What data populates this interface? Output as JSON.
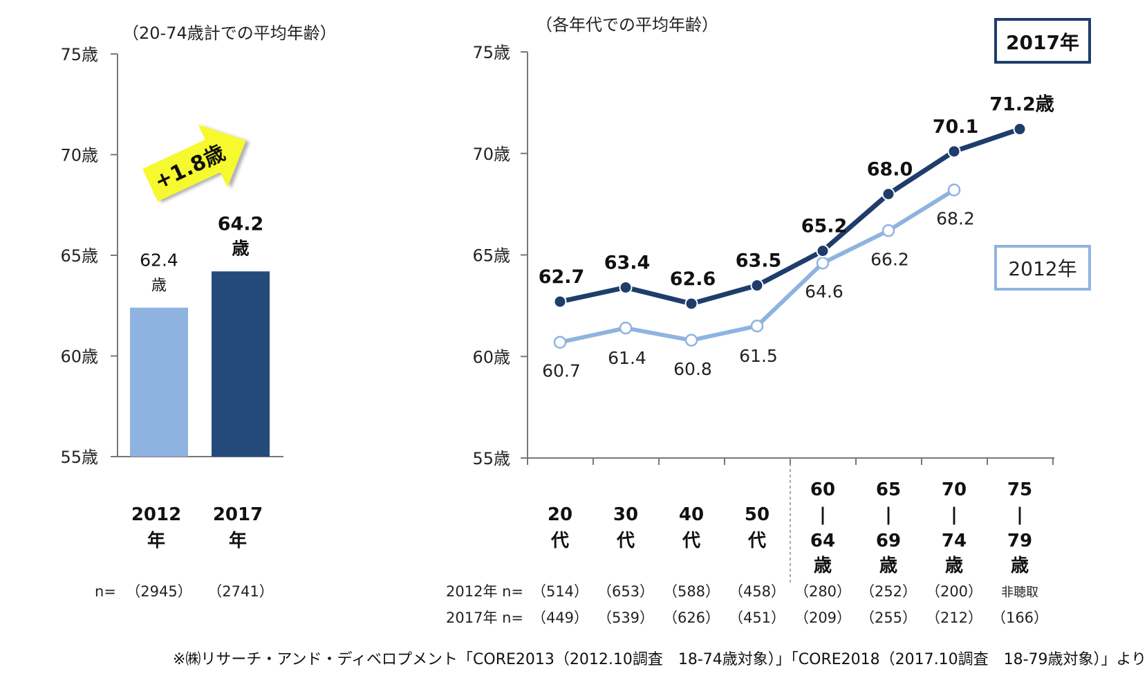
{
  "chart_data": [
    {
      "type": "bar",
      "subtitle": "（20-74歳計での平均年齢）",
      "y_ticks": [
        "75歳",
        "70歳",
        "65歳",
        "60歳",
        "55歳"
      ],
      "ylim": [
        55,
        75
      ],
      "categories": [
        {
          "line1": "2012",
          "line2": "年"
        },
        {
          "line1": "2017",
          "line2": "年"
        }
      ],
      "values": [
        62.4,
        64.2
      ],
      "value_labels": [
        {
          "line1": "62.4",
          "line2": "歳"
        },
        {
          "line1": "64.2",
          "line2": "歳"
        }
      ],
      "colors": [
        "#8fb3e0",
        "#244a7c"
      ],
      "n_label": "n=",
      "n_values": [
        "（2945）",
        "（2741）"
      ],
      "annotation": "+1.8歳",
      "annotation_color": "#f6f92e"
    },
    {
      "type": "line",
      "subtitle": "（各年代での平均年齢）",
      "y_ticks": [
        "75歳",
        "70歳",
        "65歳",
        "60歳",
        "55歳"
      ],
      "ylim": [
        55,
        75
      ],
      "categories": [
        [
          "20",
          "代"
        ],
        [
          "30",
          "代"
        ],
        [
          "40",
          "代"
        ],
        [
          "50",
          "代"
        ],
        [
          "60",
          "|",
          "64",
          "歳"
        ],
        [
          "65",
          "|",
          "69",
          "歳"
        ],
        [
          "70",
          "|",
          "74",
          "歳"
        ],
        [
          "75",
          "|",
          "79",
          "歳"
        ]
      ],
      "series": [
        {
          "name": "2017年",
          "values": [
            62.7,
            63.4,
            62.6,
            63.5,
            65.2,
            68.0,
            70.1,
            71.2
          ],
          "labels": [
            "62.7",
            "63.4",
            "62.6",
            "63.5",
            "65.2",
            "68.0",
            "70.1",
            "71.2歳"
          ],
          "color": "#1e3d6b"
        },
        {
          "name": "2012年",
          "values": [
            60.7,
            61.4,
            60.8,
            61.5,
            64.6,
            66.2,
            68.2,
            null
          ],
          "labels": [
            "60.7",
            "61.4",
            "60.8",
            "61.5",
            "64.6",
            "66.2",
            "68.2",
            ""
          ],
          "color": "#8fb3e0"
        }
      ],
      "n_rows": [
        {
          "label": "2012年  n=",
          "values": [
            "（514）",
            "（653）",
            "（588）",
            "（458）",
            "（280）",
            "（252）",
            "（200）",
            "非聴取"
          ]
        },
        {
          "label": "2017年  n=",
          "values": [
            "（449）",
            "（539）",
            "（626）",
            "（451）",
            "（209）",
            "（255）",
            "（212）",
            "（166）"
          ]
        }
      ]
    }
  ],
  "footnote": "※㈱リサーチ・アンド・ディベロプメント「CORE2013（2012.10調査　18-74歳対象）」「CORE2018（2017.10調査　18-79歳対象）」より"
}
